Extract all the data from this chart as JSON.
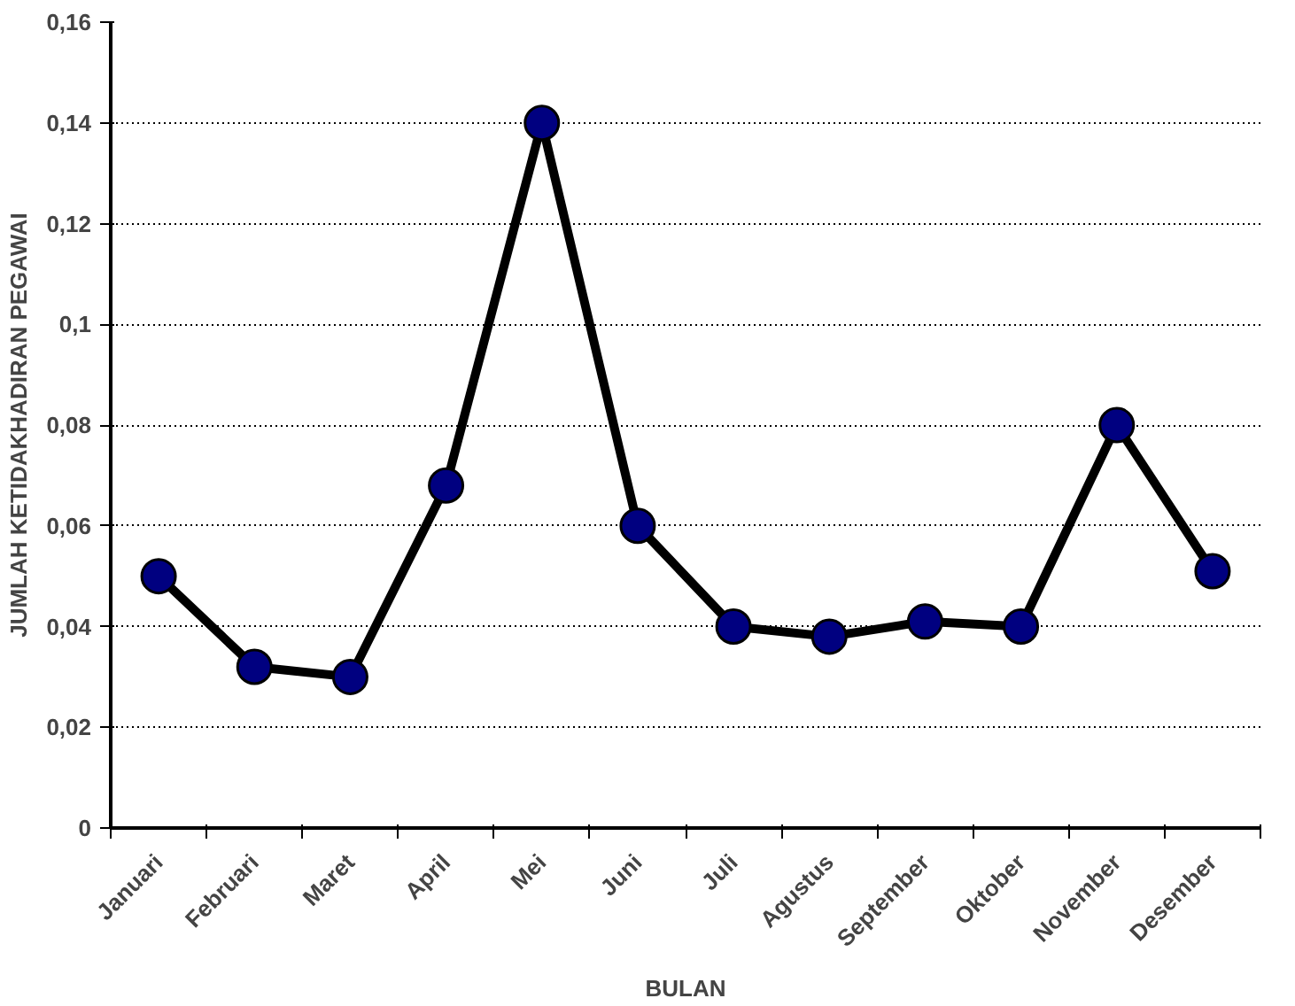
{
  "chart_data": {
    "type": "line",
    "xlabel": "BULAN",
    "ylabel": "JUMLAH KETIDAKHADIRAN PEGAWAI",
    "categories": [
      "Januari",
      "Februari",
      "Maret",
      "April",
      "Mei",
      "Juni",
      "Juli",
      "Agustus",
      "September",
      "Oktober",
      "November",
      "Desember"
    ],
    "series": [
      {
        "color": "#000000",
        "colors": [
          "#000080",
          "#000080",
          "#000080",
          "#000080",
          "#000080",
          "#000080",
          "#000080",
          "#000080",
          "#000080",
          "#000080",
          "#000080",
          "#000080"
        ],
        "values": [
          0.05,
          0.032,
          0.03,
          0.068,
          0.14,
          0.06,
          0.04,
          0.038,
          0.041,
          0.04,
          0.08,
          0.051
        ]
      }
    ],
    "ylim": [
      0,
      0.16
    ],
    "yticks": [
      0,
      {
        "value": 0.02,
        "label": "0,02"
      },
      {
        "value": 0.04,
        "label": "0,04"
      },
      {
        "value": 0.06,
        "label": "0,06"
      },
      {
        "value": 0.08,
        "label": "0,08"
      },
      {
        "value": 0.1,
        "label": "0,1"
      },
      {
        "value": 0.12,
        "label": "0,12"
      },
      {
        "value": 0.14,
        "label": "0,14"
      },
      {
        "value": 0.16,
        "label": "0,16"
      }
    ],
    "grid": "y",
    "marker": "circle",
    "line_style": "solid"
  }
}
